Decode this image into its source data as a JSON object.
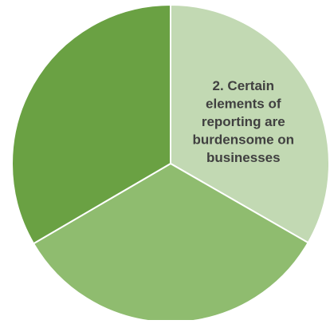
{
  "chart_data": {
    "type": "pie",
    "categories": [
      "2. Certain elements of reporting are burdensome on businesses",
      "",
      ""
    ],
    "values": [
      33.3,
      33.3,
      33.4
    ],
    "colors": [
      "#c2d9b3",
      "#8fbc6f",
      "#6aa143"
    ],
    "labels": [
      [
        "2. Certain",
        "elements of",
        "reporting are",
        "burdensome on",
        "businesses"
      ],
      [],
      []
    ],
    "label_color": "#404040",
    "start_angle_deg": 0,
    "direction": "clockwise",
    "legend": "none"
  }
}
